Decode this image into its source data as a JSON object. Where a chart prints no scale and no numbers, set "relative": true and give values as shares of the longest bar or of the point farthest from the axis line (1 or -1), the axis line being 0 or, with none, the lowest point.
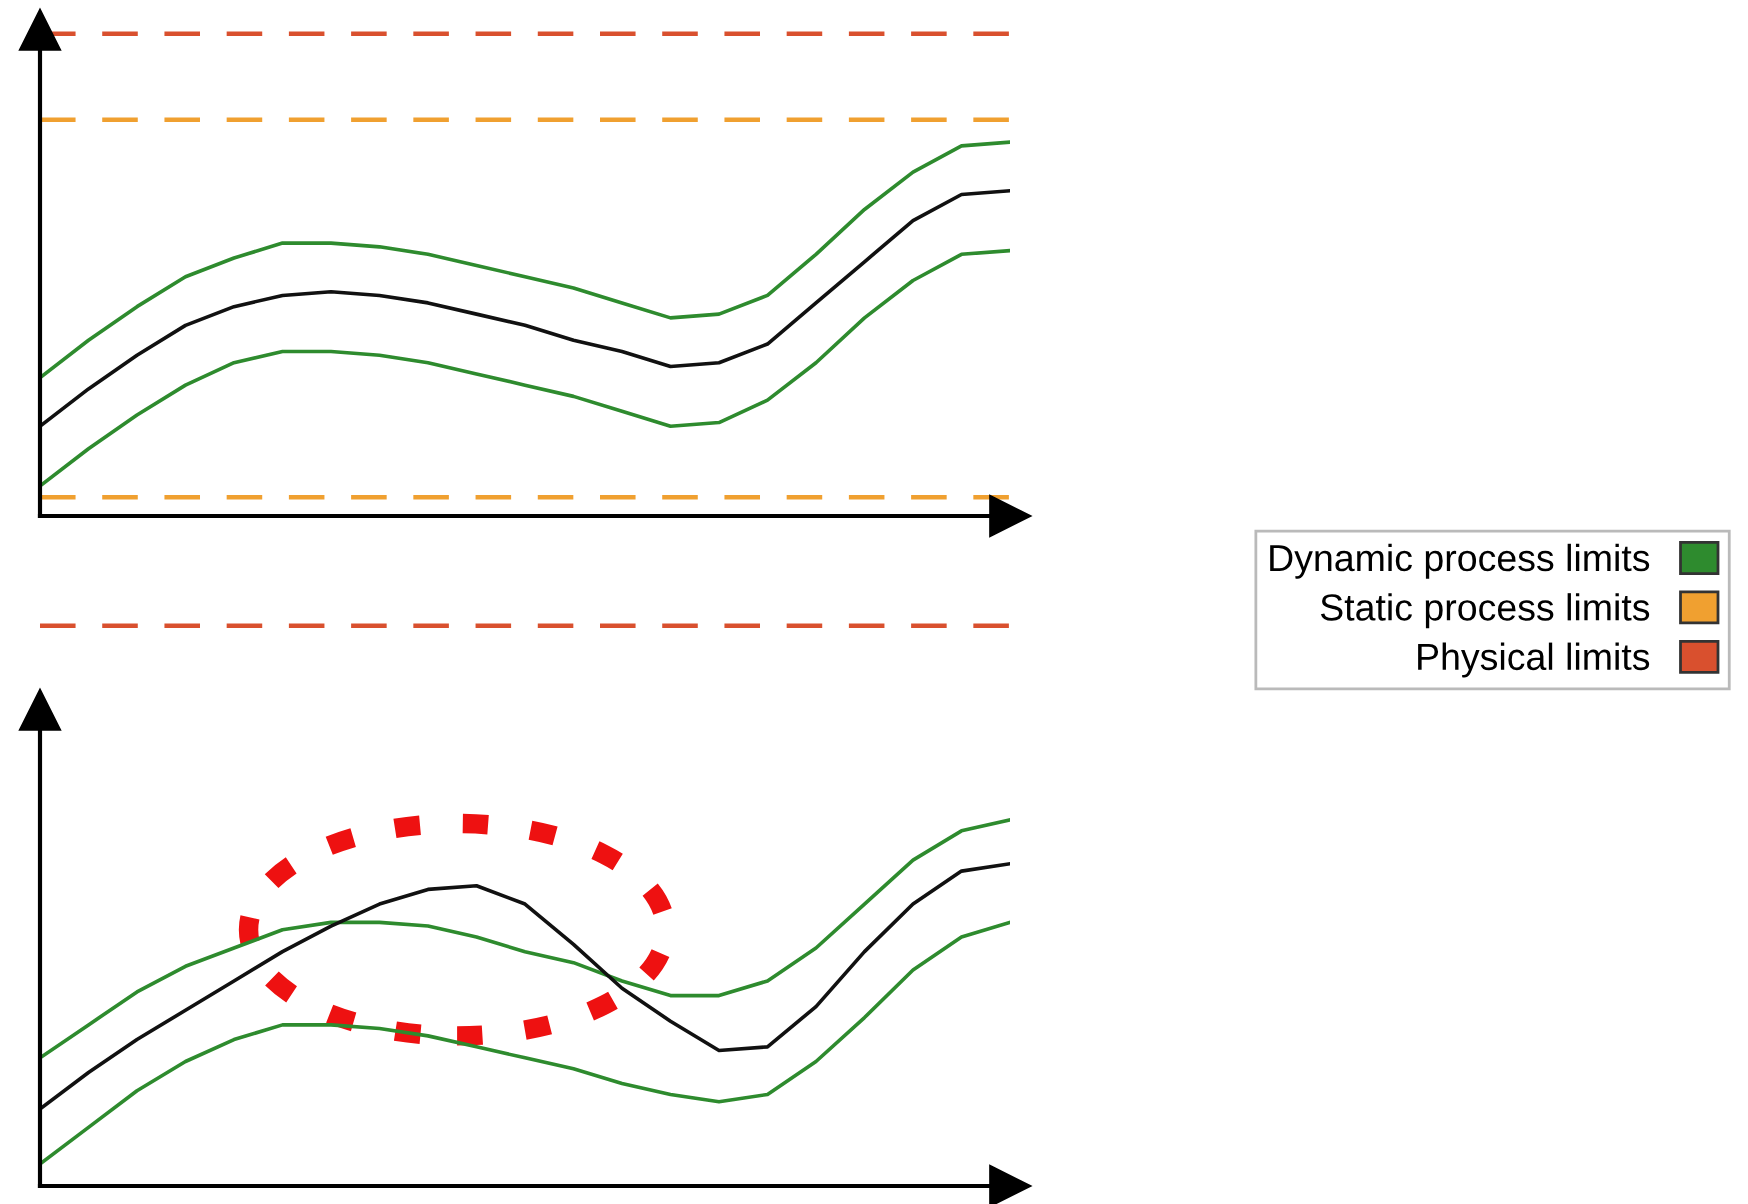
{
  "chart_data": [
    {
      "type": "line",
      "relative": true,
      "categories": [
        null,
        null,
        null,
        null,
        null,
        null,
        null,
        null,
        null,
        null,
        null,
        null,
        null,
        null,
        null,
        null,
        null,
        null,
        null,
        null,
        null
      ],
      "legend": "right",
      "line_style": "solid",
      "marker": "none",
      "tick_labels": false,
      "series": [
        {
          "color": "#2e8b2e",
          "name": "Dynamic process limits",
          "values": [
            0.37,
            0.47,
            0.56,
            0.64,
            0.69,
            0.73,
            0.73,
            0.72,
            0.7,
            0.67,
            0.64,
            0.61,
            0.57,
            0.53,
            0.54,
            0.59,
            0.7,
            0.82,
            0.92,
            0.99,
            1.0
          ]
        },
        {
          "color": "#111111",
          "values": [
            0.24,
            0.34,
            0.43,
            0.51,
            0.56,
            0.59,
            0.6,
            0.59,
            0.57,
            0.54,
            0.51,
            0.47,
            0.44,
            0.4,
            0.41,
            0.46,
            0.57,
            0.68,
            0.79,
            0.86,
            0.87
          ]
        },
        {
          "color": "#2e8b2e",
          "values": [
            0.08,
            0.18,
            0.27,
            0.35,
            0.41,
            0.44,
            0.44,
            0.43,
            0.41,
            0.38,
            0.35,
            0.32,
            0.28,
            0.24,
            0.25,
            0.31,
            0.41,
            0.53,
            0.63,
            0.7,
            0.71
          ]
        }
      ],
      "ref_lines": [
        {
          "axis": "y",
          "value": 0.05,
          "color": "#f0a030",
          "line_style": "dashed"
        },
        {
          "axis": "y",
          "value": 1.06,
          "color": "#f0a030",
          "line_style": "dashed",
          "label": "Static process limits"
        },
        {
          "axis": "y",
          "value": 1.29,
          "color": "#d9502e",
          "line_style": "dashed",
          "label": "Physical limits"
        }
      ]
    },
    {
      "type": "line",
      "relative": true,
      "categories": [
        null,
        null,
        null,
        null,
        null,
        null,
        null,
        null,
        null,
        null,
        null,
        null,
        null,
        null,
        null,
        null,
        null,
        null,
        null,
        null,
        null
      ],
      "line_style": "solid",
      "marker": "none",
      "tick_labels": false,
      "series": [
        {
          "color": "#2e8b2e",
          "values": [
            0.35,
            0.44,
            0.53,
            0.6,
            0.65,
            0.7,
            0.72,
            0.72,
            0.71,
            0.68,
            0.64,
            0.61,
            0.56,
            0.52,
            0.52,
            0.56,
            0.65,
            0.77,
            0.89,
            0.97,
            1.0
          ]
        },
        {
          "color": "#111111",
          "values": [
            0.21,
            0.31,
            0.4,
            0.48,
            0.56,
            0.64,
            0.71,
            0.77,
            0.81,
            0.82,
            0.77,
            0.66,
            0.54,
            0.45,
            0.37,
            0.38,
            0.49,
            0.64,
            0.77,
            0.86,
            0.88
          ]
        },
        {
          "color": "#2e8b2e",
          "values": [
            0.06,
            0.16,
            0.26,
            0.34,
            0.4,
            0.44,
            0.44,
            0.43,
            0.41,
            0.38,
            0.35,
            0.32,
            0.28,
            0.25,
            0.23,
            0.25,
            0.34,
            0.46,
            0.59,
            0.68,
            0.72
          ]
        }
      ],
      "ref_lines": [
        {
          "axis": "y",
          "value": 1.53,
          "color": "#d9502e",
          "line_style": "dashed"
        }
      ]
    }
  ]
}
